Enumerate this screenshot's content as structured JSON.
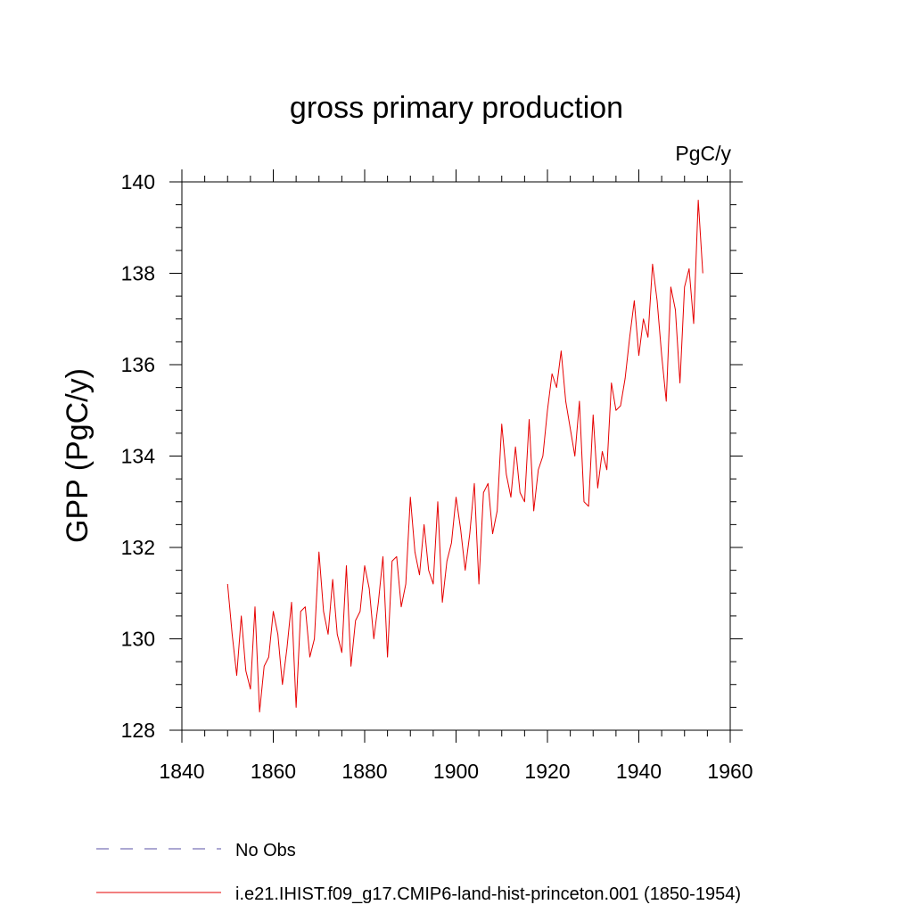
{
  "chart_data": {
    "type": "line",
    "title": "gross primary production",
    "units": "PgC/y",
    "ylabel": "GPP  (PgC/y)",
    "xlabel": "",
    "xlim": [
      1840,
      1960
    ],
    "ylim": [
      128,
      140
    ],
    "xticks": [
      1840,
      1860,
      1880,
      1900,
      1920,
      1940,
      1960
    ],
    "yticks": [
      128,
      130,
      132,
      134,
      136,
      138,
      140
    ],
    "grid": false,
    "legend_position": "bottom",
    "legend": [
      {
        "label": "No Obs",
        "color": "#7a73b8",
        "style": "dashed"
      },
      {
        "label": "i.e21.IHIST.f09_g17.CMIP6-land-hist-princeton.001 (1850-1954)",
        "color": "#e60000",
        "style": "solid"
      }
    ],
    "series": [
      {
        "name": "i.e21.IHIST.f09_g17.CMIP6-land-hist-princeton.001 (1850-1954)",
        "color": "#e60000",
        "x": [
          1850,
          1851,
          1852,
          1853,
          1854,
          1855,
          1856,
          1857,
          1858,
          1859,
          1860,
          1861,
          1862,
          1863,
          1864,
          1865,
          1866,
          1867,
          1868,
          1869,
          1870,
          1871,
          1872,
          1873,
          1874,
          1875,
          1876,
          1877,
          1878,
          1879,
          1880,
          1881,
          1882,
          1883,
          1884,
          1885,
          1886,
          1887,
          1888,
          1889,
          1890,
          1891,
          1892,
          1893,
          1894,
          1895,
          1896,
          1897,
          1898,
          1899,
          1900,
          1901,
          1902,
          1903,
          1904,
          1905,
          1906,
          1907,
          1908,
          1909,
          1910,
          1911,
          1912,
          1913,
          1914,
          1915,
          1916,
          1917,
          1918,
          1919,
          1920,
          1921,
          1922,
          1923,
          1924,
          1925,
          1926,
          1927,
          1928,
          1929,
          1930,
          1931,
          1932,
          1933,
          1934,
          1935,
          1936,
          1937,
          1938,
          1939,
          1940,
          1941,
          1942,
          1943,
          1944,
          1945,
          1946,
          1947,
          1948,
          1949,
          1950,
          1951,
          1952,
          1953,
          1954
        ],
        "y": [
          131.2,
          130.1,
          129.2,
          130.5,
          129.3,
          128.9,
          130.7,
          128.4,
          129.4,
          129.6,
          130.6,
          130.1,
          129.0,
          129.8,
          130.8,
          128.5,
          130.6,
          130.7,
          129.6,
          130.0,
          131.9,
          130.6,
          130.1,
          131.3,
          130.1,
          129.7,
          131.6,
          129.4,
          130.4,
          130.6,
          131.6,
          131.1,
          130.0,
          130.8,
          131.8,
          129.6,
          131.7,
          131.8,
          130.7,
          131.2,
          133.1,
          131.9,
          131.4,
          132.5,
          131.5,
          131.2,
          133.0,
          130.8,
          131.7,
          132.1,
          133.1,
          132.4,
          131.5,
          132.3,
          133.4,
          131.2,
          133.2,
          133.4,
          132.3,
          132.8,
          134.7,
          133.6,
          133.1,
          134.2,
          133.2,
          133.0,
          134.8,
          132.8,
          133.7,
          134.0,
          135.0,
          135.8,
          135.5,
          136.3,
          135.2,
          134.6,
          134.0,
          135.2,
          133.0,
          132.9,
          134.9,
          133.3,
          134.1,
          133.7,
          135.6,
          135.0,
          135.1,
          135.7,
          136.6,
          137.4,
          136.2,
          137.0,
          136.6,
          138.2,
          137.4,
          136.2,
          135.2,
          137.7,
          137.2,
          135.6,
          137.7,
          138.1,
          136.9,
          139.6,
          138.0
        ]
      }
    ]
  }
}
